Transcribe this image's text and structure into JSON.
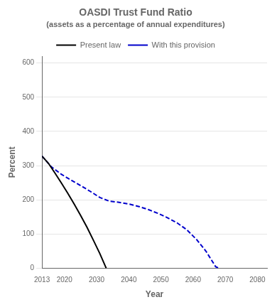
{
  "chart_data": {
    "type": "line",
    "title": "OASDI Trust Fund Ratio",
    "subtitle": "(assets as a percentage of annual expenditures)",
    "xlabel": "Year",
    "ylabel": "Percent",
    "xlim": [
      2013,
      2083
    ],
    "xticks": [
      2013,
      2020,
      2030,
      2040,
      2050,
      2060,
      2070,
      2080
    ],
    "ylim": [
      0,
      620
    ],
    "yticks": [
      0,
      100,
      200,
      300,
      400,
      500,
      600
    ],
    "grid": "y",
    "legend": "top",
    "series": [
      {
        "name": "Present law",
        "color": "#000000",
        "line_style": "solid",
        "x": [
          2013,
          2015,
          2017,
          2019,
          2021,
          2023,
          2025,
          2027,
          2029,
          2031,
          2033
        ],
        "values": [
          328,
          307,
          279,
          250,
          220,
          188,
          155,
          120,
          82,
          43,
          0
        ]
      },
      {
        "name": "With this provision",
        "color": "#0000cc",
        "line_style": "dashed",
        "x": [
          2013,
          2016,
          2019,
          2022,
          2025,
          2028,
          2031,
          2034,
          2037,
          2040,
          2043,
          2046,
          2049,
          2052,
          2055,
          2058,
          2061,
          2064,
          2067,
          2068
        ],
        "values": [
          328,
          296,
          275,
          258,
          242,
          225,
          207,
          196,
          193,
          188,
          181,
          172,
          161,
          148,
          133,
          113,
          85,
          50,
          5,
          0
        ]
      }
    ]
  }
}
